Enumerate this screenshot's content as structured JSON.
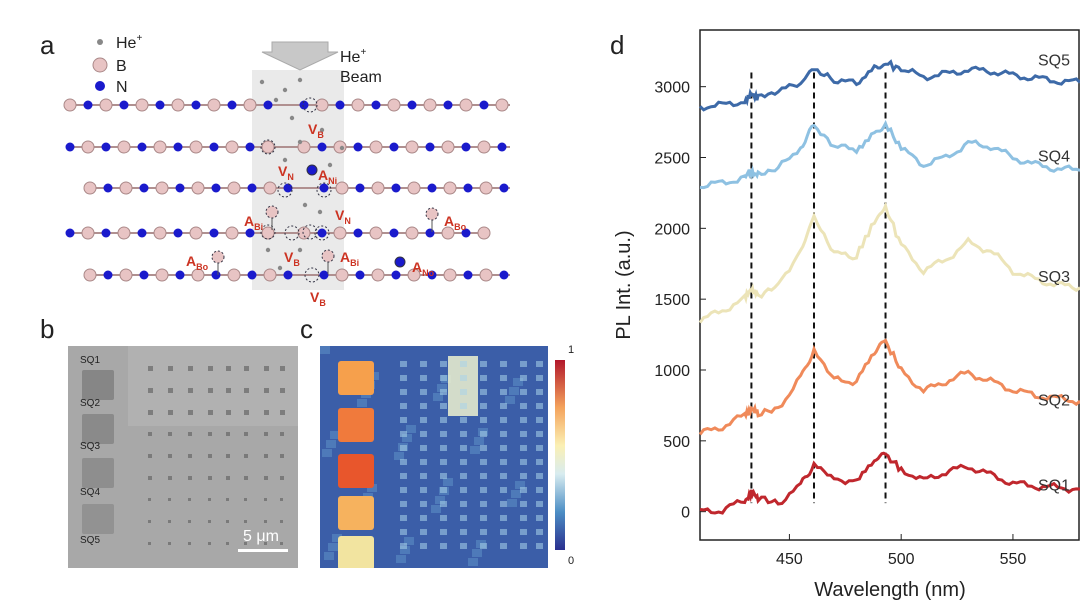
{
  "panels": {
    "a": "a",
    "b": "b",
    "c": "c",
    "d": "d"
  },
  "panel_a": {
    "legend": {
      "he": "He",
      "he_sup": "+",
      "b": "B",
      "n": "N"
    },
    "beam": {
      "line1": "He",
      "line1_sup": "+",
      "line2": "Beam"
    },
    "labels": {
      "vb": "V",
      "vb_sub": "B",
      "vn": "V",
      "vn_sub": "N",
      "anl": "A",
      "anl_sub": "Ni",
      "abi": "A",
      "abi_sub": "Bi",
      "abo": "A",
      "abo_sub": "Bo",
      "ano": "A",
      "ano_sub": "No"
    },
    "colors": {
      "boron": "#e8c4c4",
      "nitrogen": "#1a1acc",
      "defect_label": "#cc3322"
    }
  },
  "panel_b": {
    "squares": [
      "SQ1",
      "SQ2",
      "SQ3",
      "SQ4",
      "SQ5"
    ],
    "scalebar": "5 μm"
  },
  "panel_c": {
    "colorbar_max": "1",
    "colorbar_min": "0"
  },
  "chart_data": {
    "type": "line",
    "title": "",
    "xlabel": "Wavelength (nm)",
    "ylabel": "PL Int. (a.u.)",
    "xlim": [
      410,
      580
    ],
    "ylim": [
      -200,
      3400
    ],
    "xticks": [
      450,
      500,
      550
    ],
    "yticks": [
      0,
      500,
      1000,
      1500,
      2000,
      2500,
      3000
    ],
    "x": [
      410,
      420,
      430,
      433,
      436,
      445,
      455,
      461,
      470,
      480,
      488,
      493,
      500,
      510,
      520,
      530,
      540,
      550,
      560,
      570,
      580
    ],
    "series": [
      {
        "name": "SQ1",
        "color": "#c0272d",
        "values": [
          0,
          10,
          80,
          130,
          100,
          60,
          180,
          340,
          230,
          220,
          350,
          400,
          300,
          220,
          280,
          320,
          260,
          200,
          180,
          170,
          160
        ]
      },
      {
        "name": "SQ2",
        "color": "#f08a5a",
        "values": [
          550,
          600,
          680,
          730,
          690,
          730,
          950,
          1140,
          930,
          920,
          1130,
          1200,
          1000,
          850,
          920,
          980,
          920,
          860,
          820,
          800,
          780
        ]
      },
      {
        "name": "SQ3",
        "color": "#ece4b8",
        "values": [
          1350,
          1420,
          1500,
          1580,
          1520,
          1600,
          1850,
          2080,
          1820,
          1800,
          2060,
          2150,
          1880,
          1700,
          1780,
          1900,
          1840,
          1700,
          1640,
          1600,
          1580
        ]
      },
      {
        "name": "SQ4",
        "color": "#8ec1e2",
        "values": [
          2300,
          2320,
          2360,
          2400,
          2380,
          2420,
          2580,
          2720,
          2580,
          2550,
          2680,
          2740,
          2560,
          2450,
          2500,
          2600,
          2580,
          2500,
          2450,
          2420,
          2410
        ]
      },
      {
        "name": "SQ5",
        "color": "#3d6aa8",
        "values": [
          2860,
          2870,
          2900,
          2940,
          2930,
          2960,
          3030,
          3120,
          3050,
          3020,
          3130,
          3170,
          3120,
          3070,
          3090,
          3120,
          3110,
          3080,
          3060,
          3040,
          3030
        ]
      }
    ],
    "vlines": [
      433,
      461,
      493
    ],
    "series_label_y": [
      80,
      680,
      1550,
      2400,
      3080
    ]
  }
}
